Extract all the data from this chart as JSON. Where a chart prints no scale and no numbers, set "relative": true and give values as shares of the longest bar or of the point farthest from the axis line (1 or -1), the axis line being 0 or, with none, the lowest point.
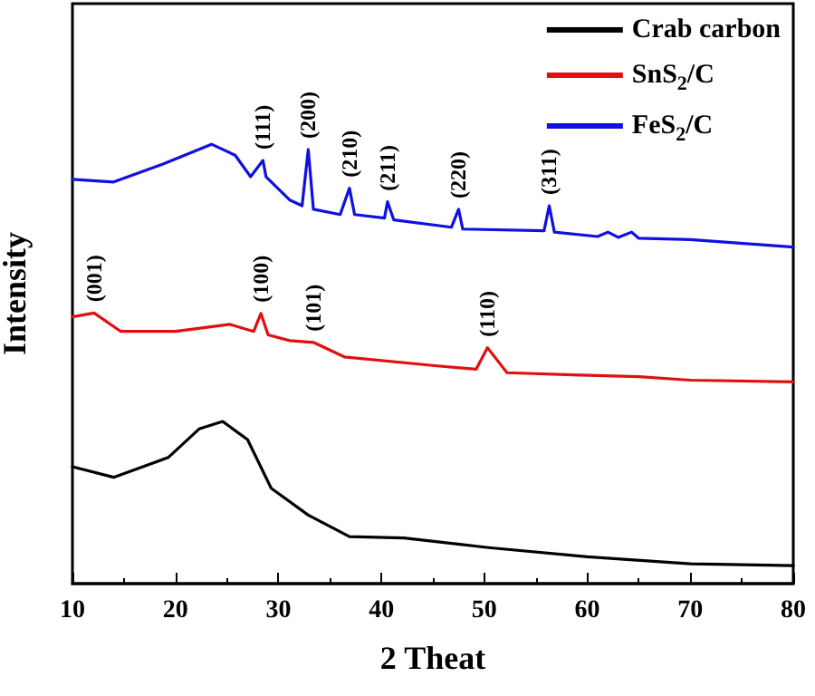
{
  "chart_data": {
    "type": "line",
    "relative": true,
    "xlabel": "2 Theat",
    "ylabel": "Intensity",
    "xlim": [
      10,
      80
    ],
    "xticks": [
      10,
      20,
      30,
      40,
      50,
      60,
      70,
      80
    ],
    "grid": false,
    "legend": "top right",
    "marker": "none",
    "line_style": "solid",
    "series": [
      {
        "name": "Crab carbon",
        "color": "#000000",
        "x": [
          10,
          14,
          19.3,
          22.3,
          24.6,
          27,
          29.3,
          32.9,
          36.9,
          42.2,
          50.4,
          60,
          70,
          80
        ],
        "values": [
          0.266,
          0.242,
          0.287,
          0.352,
          0.369,
          0.328,
          0.217,
          0.156,
          0.107,
          0.104,
          0.082,
          0.061,
          0.045,
          0.041
        ]
      },
      {
        "name": "SnS$_{2}$/C",
        "color": "#e01010",
        "x": [
          10,
          12.1,
          14.7,
          20,
          25.3,
          27.6,
          28.3,
          29,
          31.1,
          33.4,
          36.4,
          45.2,
          49.2,
          50.3,
          52.2,
          58.5,
          65,
          70,
          80
        ],
        "values": [
          0.607,
          0.616,
          0.574,
          0.574,
          0.59,
          0.574,
          0.615,
          0.566,
          0.553,
          0.549,
          0.516,
          0.496,
          0.488,
          0.537,
          0.48,
          0.475,
          0.471,
          0.463,
          0.459
        ]
      },
      {
        "name": "FeS$_{2}$/C",
        "color": "#1010e0",
        "x": [
          10,
          14,
          18.8,
          23.5,
          25.8,
          27.3,
          28.5,
          28.8,
          31.1,
          32.3,
          32.9,
          33.4,
          36,
          36.9,
          37.4,
          40.3,
          40.6,
          41.2,
          46.8,
          47.5,
          47.9,
          55.8,
          56.3,
          56.8,
          61,
          62,
          63,
          64.3,
          65,
          70,
          80
        ],
        "values": [
          0.92,
          0.914,
          0.955,
          1,
          0.975,
          0.926,
          0.963,
          0.926,
          0.873,
          0.86,
          0.988,
          0.852,
          0.84,
          0.9,
          0.84,
          0.832,
          0.869,
          0.828,
          0.811,
          0.852,
          0.807,
          0.803,
          0.86,
          0.8,
          0.79,
          0.8,
          0.788,
          0.8,
          0.786,
          0.783,
          0.766
        ]
      }
    ],
    "annotations": [
      {
        "text": "(111)",
        "x": 28.5,
        "y": 0.963
      },
      {
        "text": "(200)",
        "x": 32.9,
        "y": 0.988
      },
      {
        "text": "(210)",
        "x": 36.9,
        "y": 0.9
      },
      {
        "text": "(211)",
        "x": 40.6,
        "y": 0.869
      },
      {
        "text": "(220)",
        "x": 47.5,
        "y": 0.852
      },
      {
        "text": "(311)",
        "x": 56.3,
        "y": 0.86
      },
      {
        "text": "(001)",
        "x": 12.1,
        "y": 0.616
      },
      {
        "text": "(100)",
        "x": 28.3,
        "y": 0.615
      },
      {
        "text": "(101)",
        "x": 33.4,
        "y": 0.549
      },
      {
        "text": "(110)",
        "x": 50.3,
        "y": 0.537
      }
    ]
  }
}
